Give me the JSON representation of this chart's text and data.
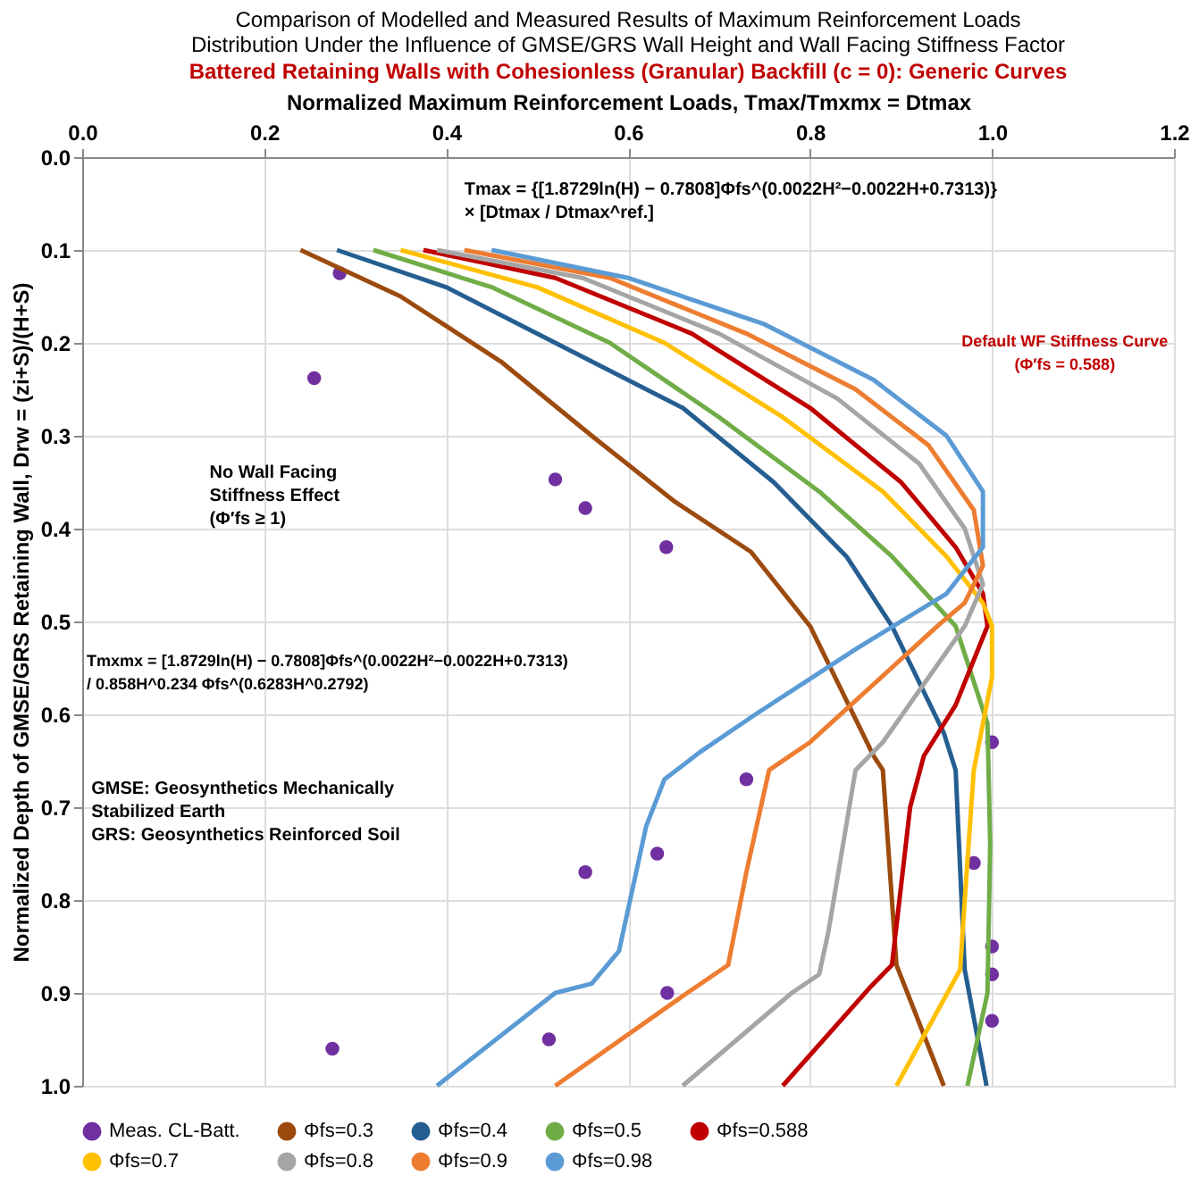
{
  "chart_data": {
    "type": "line",
    "title": [
      "Comparison of Modelled and Measured Results of Maximum Reinforcement Loads",
      "Distribution Under the Influence of GMSE/GRS Wall Height and Wall Facing Stiffness Factor"
    ],
    "subtitle": "Battered Retaining Walls with Cohesionless (Granular)  Backfill (c = 0): Generic Curves",
    "xlabel": "Normalized Maximum Reinforcement Loads, Tmax/Tmxmx = Dtmax",
    "ylabel": "Normalized Depth of GMSE/GRS Retaining Wall, Drw = (zi+S)/(H+S)",
    "xlim": [
      0.0,
      1.2
    ],
    "xticks": [
      {
        "value": 0,
        "label": "0.0"
      },
      0.2,
      0.4,
      0.6,
      0.8,
      {
        "value": 1,
        "label": "1.0"
      },
      1.2
    ],
    "ylim": [
      1.0,
      0.0
    ],
    "yticks": [
      {
        "value": 0,
        "label": "0.0"
      },
      0.1,
      0.2,
      0.3,
      0.4,
      0.5,
      0.6,
      0.7,
      0.8,
      0.9,
      {
        "value": 1,
        "label": "1.0"
      }
    ],
    "grid": true,
    "legend": "bottom",
    "marker": "none",
    "line_style": "solid",
    "series": [
      {
        "name": "Meas. CL-Batt.",
        "type": "scatter",
        "marker": "circle",
        "color": "#7030a0",
        "x": [
          0.283,
          0.255,
          0.52,
          0.553,
          0.642,
          1.0,
          0.73,
          0.98,
          1.0,
          1.0,
          1.0,
          0.553,
          0.632,
          0.643,
          0.513,
          0.275
        ],
        "values": [
          0.125,
          0.238,
          0.347,
          0.378,
          0.42,
          0.63,
          0.67,
          0.76,
          0.85,
          0.88,
          0.93,
          0.77,
          0.75,
          0.9,
          0.95,
          0.96
        ]
      },
      {
        "name": "Φfs=0.3",
        "color": "#9c4a0e",
        "x": [
          0.24,
          0.35,
          0.46,
          0.56,
          0.65,
          0.735,
          0.8,
          0.87,
          0.88,
          0.895,
          0.947
        ],
        "values": [
          0.1,
          0.15,
          0.22,
          0.3,
          0.37,
          0.425,
          0.505,
          0.645,
          0.66,
          0.87,
          1.0
        ]
      },
      {
        "name": "Φfs=0.4",
        "color": "#255e91",
        "x": [
          0.28,
          0.4,
          0.52,
          0.66,
          0.76,
          0.84,
          0.89,
          0.947,
          0.96,
          0.97,
          0.994
        ],
        "values": [
          0.1,
          0.14,
          0.2,
          0.27,
          0.35,
          0.43,
          0.505,
          0.62,
          0.66,
          0.875,
          1.0
        ]
      },
      {
        "name": "Φfs=0.5",
        "color": "#70ad47",
        "x": [
          0.32,
          0.45,
          0.58,
          0.7,
          0.81,
          0.89,
          0.96,
          0.995,
          0.998,
          0.995,
          0.973
        ],
        "values": [
          0.1,
          0.14,
          0.2,
          0.28,
          0.36,
          0.43,
          0.505,
          0.61,
          0.74,
          0.9,
          1.0
        ]
      },
      {
        "name": "Φfs=0.588",
        "color": "#c00000",
        "x": [
          0.375,
          0.52,
          0.67,
          0.8,
          0.9,
          0.96,
          0.99,
          0.995,
          0.96,
          0.925,
          0.91,
          0.89,
          0.865,
          0.77
        ],
        "values": [
          0.1,
          0.13,
          0.19,
          0.27,
          0.35,
          0.42,
          0.47,
          0.505,
          0.59,
          0.645,
          0.7,
          0.87,
          0.895,
          1.0
        ]
      },
      {
        "name": "Φfs=0.7",
        "color": "#ffc000",
        "x": [
          0.35,
          0.5,
          0.64,
          0.77,
          0.88,
          0.95,
          0.99,
          1.0,
          1.0,
          0.98,
          0.97,
          0.965,
          0.895
        ],
        "values": [
          0.1,
          0.14,
          0.2,
          0.28,
          0.36,
          0.43,
          0.48,
          0.505,
          0.56,
          0.66,
          0.8,
          0.875,
          1.0
        ]
      },
      {
        "name": "Φfs=0.8",
        "color": "#a5a5a5",
        "x": [
          0.39,
          0.55,
          0.7,
          0.83,
          0.92,
          0.97,
          0.99,
          0.97,
          0.88,
          0.85,
          0.82,
          0.81,
          0.78,
          0.66
        ],
        "values": [
          0.1,
          0.13,
          0.19,
          0.26,
          0.33,
          0.4,
          0.46,
          0.505,
          0.63,
          0.66,
          0.835,
          0.88,
          0.9,
          1.0
        ]
      },
      {
        "name": "Φfs=0.9",
        "color": "#ed7d31",
        "x": [
          0.42,
          0.58,
          0.73,
          0.85,
          0.93,
          0.98,
          0.99,
          0.97,
          0.94,
          0.8,
          0.755,
          0.73,
          0.71,
          0.665,
          0.52
        ],
        "values": [
          0.1,
          0.13,
          0.19,
          0.25,
          0.31,
          0.38,
          0.44,
          0.48,
          0.505,
          0.63,
          0.66,
          0.77,
          0.87,
          0.9,
          1.0
        ]
      },
      {
        "name": "Φfs=0.98",
        "color": "#5b9bd5",
        "x": [
          0.45,
          0.6,
          0.75,
          0.87,
          0.95,
          0.99,
          0.99,
          0.95,
          0.85,
          0.74,
          0.68,
          0.64,
          0.62,
          0.59,
          0.56,
          0.52,
          0.39
        ],
        "values": [
          0.1,
          0.13,
          0.18,
          0.24,
          0.3,
          0.36,
          0.42,
          0.47,
          0.53,
          0.6,
          0.64,
          0.67,
          0.72,
          0.855,
          0.89,
          0.9,
          1.0
        ]
      }
    ],
    "annotations": [
      "Tmax = {[1.8729ln(H) − 0.7808]Φfs^(0.0022H²−0.0022H+0.7313)}\n× [Dtmax / Dtmax^ref.]",
      "Default WF Stiffness Curve\n(Φ′fs = 0.588)",
      "No Wall Facing\nStiffness Effect\n(Φ′fs ≥ 1)",
      "Tmxmx = [1.8729ln(H) − 0.7808]Φfs^(0.0022H²−0.0022H+0.7313)\n/ 0.858H^0.234 Φfs^(0.6283H^0.2792)",
      "GMSE: Geosynthetics Mechanically\n           Stabilized Earth\nGRS:     Geosynthetics Reinforced Soil"
    ]
  }
}
